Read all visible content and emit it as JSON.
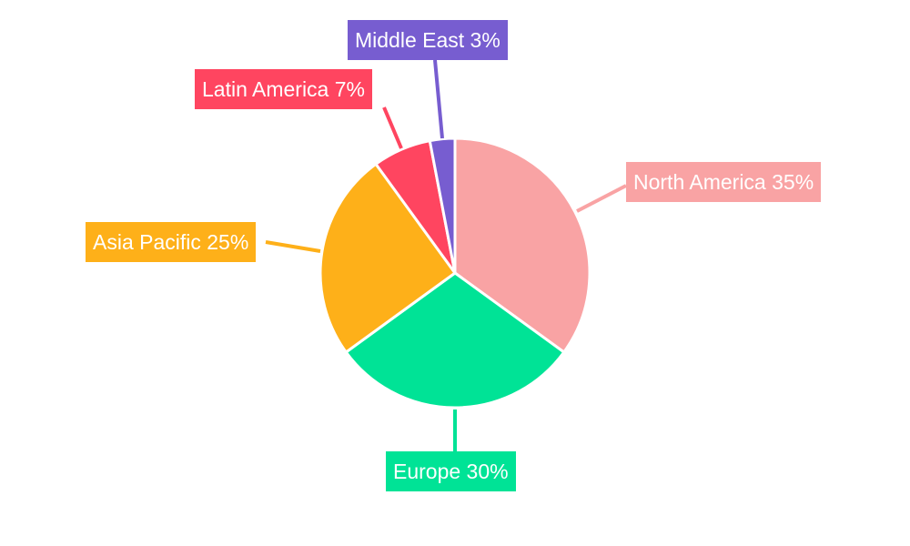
{
  "chart_data": {
    "type": "pie",
    "start": "top",
    "direction": "clockwise",
    "slices": [
      {
        "name": "North America",
        "value": 35,
        "label": "North America 35%",
        "color": "#f9a3a4"
      },
      {
        "name": "Europe",
        "value": 30,
        "label": "Europe 30%",
        "color": "#00e396"
      },
      {
        "name": "Asia Pacific",
        "value": 25,
        "label": "Asia Pacific 25%",
        "color": "#feb019"
      },
      {
        "name": "Latin America",
        "value": 7,
        "label": "Latin America 7%",
        "color": "#ff4560"
      },
      {
        "name": "Middle East",
        "value": 3,
        "label": "Middle East 3%",
        "color": "#775dd0"
      }
    ]
  }
}
